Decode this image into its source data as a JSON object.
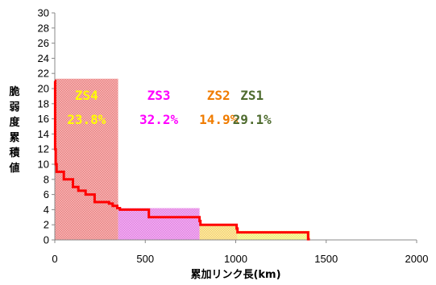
{
  "chart_data": {
    "type": "area",
    "title": "",
    "xlabel": "累加リンク長(km)",
    "ylabel": "脆弱度累積値",
    "xlim": [
      0,
      2000
    ],
    "ylim": [
      0,
      30
    ],
    "xticks": [
      "0",
      "500",
      "1000",
      "1500",
      "2000"
    ],
    "yticks": [
      "0",
      "2",
      "4",
      "6",
      "8",
      "10",
      "12",
      "14",
      "16",
      "18",
      "20",
      "22",
      "24",
      "26",
      "28",
      "30"
    ],
    "grid": false,
    "legend": "none",
    "series": [
      {
        "color": "#ff0000",
        "x": [
          0,
          2,
          2,
          5,
          5,
          10,
          10,
          50,
          50,
          100,
          100,
          130,
          130,
          170,
          170,
          220,
          220,
          300,
          300,
          320,
          320,
          345,
          345,
          360,
          360,
          520,
          520,
          800,
          800,
          805,
          805,
          1005,
          1005,
          1010,
          1010,
          1400,
          1400,
          1410
        ],
        "y": [
          21,
          21,
          12,
          12,
          10,
          10,
          9,
          9,
          8,
          8,
          7,
          7,
          6.5,
          6.5,
          6,
          6,
          5,
          5,
          4.8,
          4.8,
          4.5,
          4.5,
          4.2,
          4.2,
          4,
          4,
          3,
          3,
          2.5,
          2.5,
          2,
          2,
          1.5,
          1.5,
          1,
          1,
          0.1,
          0.1
        ]
      }
    ],
    "zones": [
      {
        "name": "ZS4",
        "percent": "23.8%",
        "x_start": 0,
        "x_end": 350,
        "height": 21.3,
        "fill": "#f5b0b0",
        "hatch": "#e06060",
        "text_color": "#ffff00"
      },
      {
        "name": "ZS3",
        "percent": "32.2%",
        "x_start": 350,
        "x_end": 800,
        "height": 4.2,
        "fill": "#f2a8f2",
        "hatch": "#d070d0",
        "text_color": "#ff00ff"
      },
      {
        "name": "ZS2",
        "percent": "14.9%",
        "x_start": 800,
        "x_end": 1010,
        "height": 2.1,
        "fill": "#fde8a0",
        "hatch": "#e8c050",
        "text_color": "#f07c00"
      },
      {
        "name": "ZS1",
        "percent": "29.1%",
        "x_start": 1010,
        "x_end": 1410,
        "height": 1.2,
        "fill": "#fbfba0",
        "hatch": "#e0e060",
        "text_color": "#4e6b2e"
      }
    ]
  }
}
